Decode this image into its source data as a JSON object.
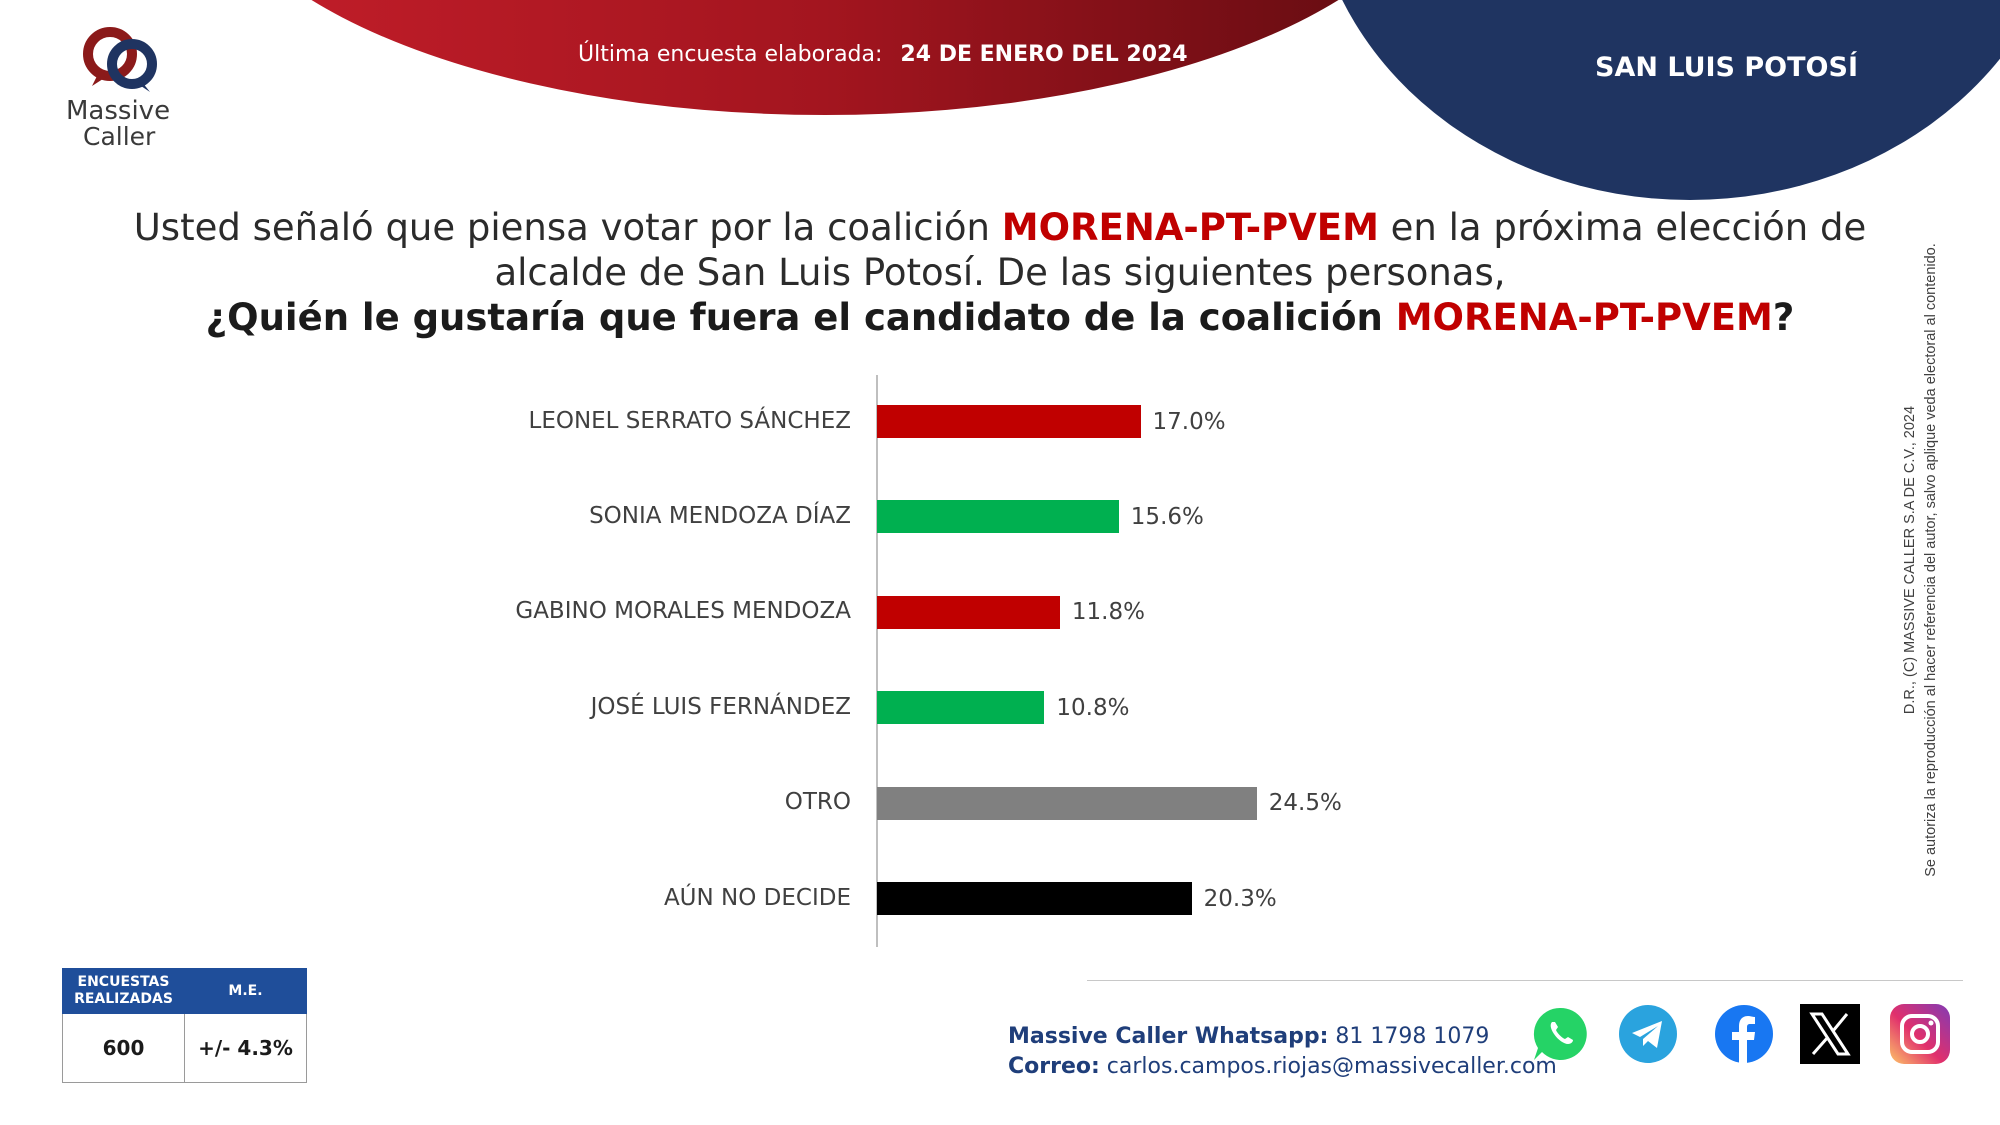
{
  "header": {
    "survey_label": "Última encuesta elaborada:",
    "survey_date": "24 DE ENERO DEL 2024",
    "region": "SAN LUIS POTOSÍ"
  },
  "logo": {
    "line1": "Massive",
    "line2": "Caller"
  },
  "question": {
    "line1_pre": "Usted señaló que piensa votar por la coalición ",
    "coalition": "MORENA-PT-PVEM",
    "line1_post": " en la próxima elección de",
    "line2": "alcalde de San Luis Potosí.  De las siguientes personas,",
    "line3_pre": "¿Quién le gustaría que fuera el candidato de la coalición ",
    "line3_post": "?"
  },
  "chart_data": {
    "type": "bar",
    "orientation": "horizontal",
    "categories": [
      "LEONEL SERRATO SÁNCHEZ",
      "SONIA MENDOZA DÍAZ",
      "GABINO MORALES MENDOZA",
      "JOSÉ LUIS FERNÁNDEZ",
      "OTRO",
      "AÚN NO DECIDE"
    ],
    "values": [
      17.0,
      15.6,
      11.8,
      10.8,
      24.5,
      20.3
    ],
    "value_labels": [
      "17.0%",
      "15.6%",
      "11.8%",
      "10.8%",
      "24.5%",
      "20.3%"
    ],
    "colors": [
      "#c00000",
      "#00b050",
      "#c00000",
      "#00b050",
      "#808080",
      "#000000"
    ],
    "xlim": [
      0,
      50
    ],
    "grid": false,
    "legend": "none"
  },
  "copyright": {
    "line1": "D.R., (C) MASSIVE CALLER S.A DE C.V., 2024",
    "line2": "Se autoriza la reproducción al hacer referencia del autor, salvo aplique veda electoral al contenido."
  },
  "contact": {
    "whatsapp_label": "Massive Caller Whatsapp:",
    "whatsapp_number": "81 1798 1079",
    "email_label": "Correo:",
    "email": "carlos.campos.riojas@massivecaller.com"
  },
  "social_icons": [
    "whatsapp-icon",
    "telegram-icon",
    "facebook-icon",
    "x-icon",
    "instagram-icon"
  ],
  "info_table": {
    "col1_header_a": "ENCUESTAS",
    "col1_header_b": "REALIZADAS",
    "col2_header": "M.E.",
    "col1_value": "600",
    "col2_value": "+/- 4.3%"
  },
  "colors": {
    "brand_red": "#c00000",
    "brand_navy": "#1f3461",
    "contact_blue": "#1f3e7a",
    "table_header": "#1f4e9a"
  }
}
